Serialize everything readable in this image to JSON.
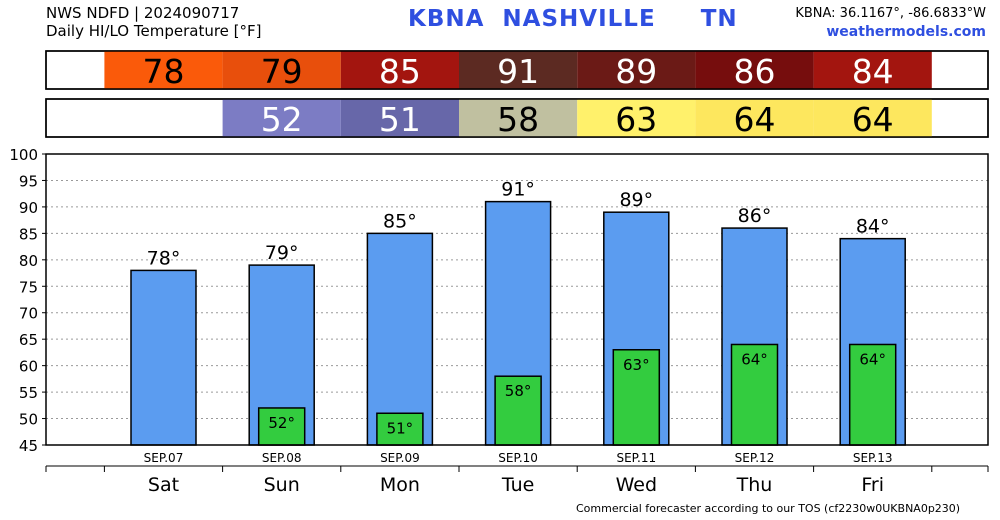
{
  "header": {
    "line1": "NWS NDFD | 2024090717",
    "line2": "Daily HI/LO Temperature [°F]",
    "title": "KBNA  NASHVILLE     TN",
    "coords": "KBNA: 36.1167°, -86.6833°W",
    "site": "weathermodels.com"
  },
  "footer": "Commercial forecaster according to our TOS (cf2230w0UKBNA0p230)",
  "colors": {
    "hi_bar": "#5b9cf0",
    "lo_bar": "#33cc3f",
    "hi_strip": [
      "#fa5a0a",
      "#e84f0c",
      "#a3150f",
      "#5c2a22",
      "#6b1a16",
      "#760d0d",
      "#a3150f"
    ],
    "lo_strip": [
      "#7c7cc4",
      "#6767a9",
      "#c0c0a0",
      "#fff16b",
      "#fde75e",
      "#fde75e"
    ],
    "hi_strip_text": [
      "#000000",
      "#000000",
      "#ffffff",
      "#ffffff",
      "#ffffff",
      "#ffffff",
      "#ffffff"
    ],
    "lo_strip_text": [
      "#ffffff",
      "#ffffff",
      "#000000",
      "#000000",
      "#000000",
      "#000000"
    ]
  },
  "chart_data": {
    "type": "bar",
    "categories": [
      "Sat",
      "Sun",
      "Mon",
      "Tue",
      "Wed",
      "Thu",
      "Fri"
    ],
    "dates": [
      "SEP.07",
      "SEP.08",
      "SEP.09",
      "SEP.10",
      "SEP.11",
      "SEP.12",
      "SEP.13"
    ],
    "series": [
      {
        "values": [
          78,
          79,
          85,
          91,
          89,
          86,
          84
        ]
      },
      {
        "values": [
          null,
          52,
          51,
          58,
          63,
          64,
          64
        ]
      }
    ],
    "ylim": [
      45,
      100
    ],
    "yticks": [
      45,
      50,
      55,
      60,
      65,
      70,
      75,
      80,
      85,
      90,
      95,
      100
    ],
    "value_suffix": "°",
    "grid": true
  }
}
